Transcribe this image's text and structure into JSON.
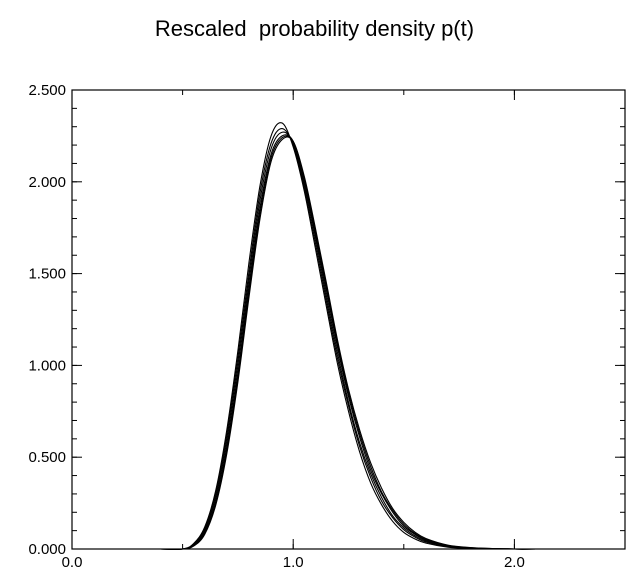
{
  "chart_data": {
    "type": "line",
    "title": "Rescaled  probability density p(t)",
    "xlabel": "",
    "ylabel": "",
    "xlim": [
      0.0,
      2.5
    ],
    "ylim": [
      0.0,
      2.5
    ],
    "x_ticks": [
      {
        "value": 0.0,
        "label": "0.0"
      },
      {
        "value": 1.0,
        "label": "1.0"
      },
      {
        "value": 2.0,
        "label": "2.0"
      }
    ],
    "y_ticks": [
      {
        "value": 0.0,
        "label": "0.000"
      },
      {
        "value": 0.5,
        "label": "0.500"
      },
      {
        "value": 1.0,
        "label": "1.000"
      },
      {
        "value": 1.5,
        "label": "1.500"
      },
      {
        "value": 2.0,
        "label": "2.000"
      },
      {
        "value": 2.5,
        "label": "2.500"
      }
    ],
    "grid": false,
    "line_color": "#000000",
    "x": [
      0.2,
      0.3,
      0.4,
      0.5,
      0.55,
      0.6,
      0.65,
      0.7,
      0.75,
      0.8,
      0.85,
      0.9,
      0.95,
      1.0,
      1.05,
      1.1,
      1.15,
      1.2,
      1.25,
      1.3,
      1.35,
      1.4,
      1.45,
      1.5,
      1.55,
      1.6,
      1.7,
      1.8,
      1.9,
      2.0,
      2.1
    ],
    "series": [
      {
        "values": [
          0.0,
          0.0,
          0.0,
          0.0,
          0.03,
          0.12,
          0.32,
          0.65,
          1.08,
          1.56,
          1.98,
          2.25,
          2.32,
          2.19,
          1.95,
          1.64,
          1.32,
          1.01,
          0.75,
          0.53,
          0.36,
          0.24,
          0.15,
          0.09,
          0.055,
          0.032,
          0.01,
          0.003,
          0.001,
          0.0,
          0.0
        ]
      },
      {
        "values": [
          0.0,
          0.0,
          0.0,
          0.0,
          0.025,
          0.11,
          0.3,
          0.62,
          1.04,
          1.51,
          1.94,
          2.21,
          2.29,
          2.2,
          1.97,
          1.67,
          1.35,
          1.04,
          0.78,
          0.56,
          0.39,
          0.26,
          0.17,
          0.105,
          0.065,
          0.038,
          0.013,
          0.004,
          0.001,
          0.0,
          0.0
        ]
      },
      {
        "values": [
          0.0,
          0.0,
          0.0,
          0.0,
          0.022,
          0.1,
          0.28,
          0.59,
          1.0,
          1.47,
          1.9,
          2.18,
          2.27,
          2.21,
          1.99,
          1.7,
          1.38,
          1.07,
          0.8,
          0.58,
          0.41,
          0.28,
          0.18,
          0.115,
          0.072,
          0.043,
          0.015,
          0.005,
          0.0015,
          0.0,
          0.0
        ]
      },
      {
        "values": [
          0.0,
          0.0,
          0.0,
          0.0,
          0.02,
          0.09,
          0.26,
          0.56,
          0.96,
          1.43,
          1.86,
          2.15,
          2.25,
          2.22,
          2.01,
          1.72,
          1.41,
          1.1,
          0.83,
          0.61,
          0.43,
          0.3,
          0.2,
          0.125,
          0.08,
          0.048,
          0.017,
          0.006,
          0.002,
          0.0,
          0.0
        ]
      },
      {
        "values": [
          0.0,
          0.0,
          0.0,
          0.0,
          0.018,
          0.085,
          0.25,
          0.54,
          0.93,
          1.4,
          1.83,
          2.13,
          2.24,
          2.22,
          2.02,
          1.74,
          1.43,
          1.12,
          0.85,
          0.63,
          0.45,
          0.31,
          0.21,
          0.135,
          0.085,
          0.052,
          0.019,
          0.007,
          0.002,
          0.0,
          0.0
        ]
      },
      {
        "values": [
          0.0,
          0.0,
          0.0,
          0.0,
          0.016,
          0.08,
          0.24,
          0.52,
          0.91,
          1.37,
          1.8,
          2.11,
          2.23,
          2.22,
          2.03,
          1.75,
          1.45,
          1.14,
          0.87,
          0.65,
          0.47,
          0.33,
          0.22,
          0.145,
          0.092,
          0.057,
          0.021,
          0.008,
          0.0025,
          0.0,
          0.0
        ]
      }
    ]
  }
}
